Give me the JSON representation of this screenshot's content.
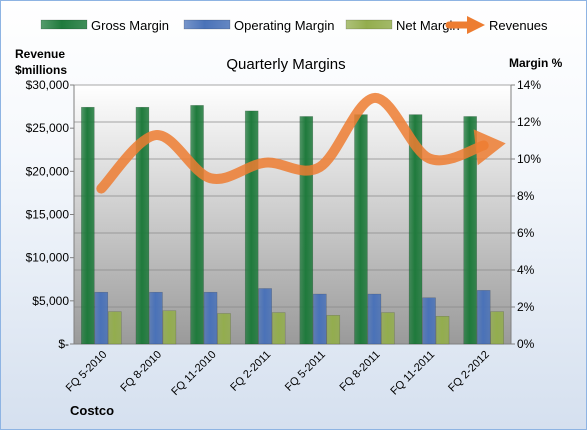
{
  "company": "Costco",
  "colors": {
    "gross": "#1f7a3c",
    "operating": "#4a72b8",
    "net": "#93ad4e",
    "revenues": "#ed7d31"
  },
  "chart_data": {
    "type": "bar",
    "title": "Quarterly Margins",
    "left_axis_label": [
      "Revenue",
      "$millions"
    ],
    "right_axis_label": "Margin %",
    "categories": [
      "FQ 5-2010",
      "FQ 8-2010",
      "FQ 11-2010",
      "FQ 2-2011",
      "FQ 5-2011",
      "FQ 8-2011",
      "FQ 11-2011",
      "FQ 2-2012"
    ],
    "left_axis": {
      "min": 0,
      "max": 30000,
      "step": 5000,
      "tick_labels": [
        "$-",
        "$5,000",
        "$10,000",
        "$15,000",
        "$20,000",
        "$25,000",
        "$30,000"
      ]
    },
    "right_axis": {
      "min": 0,
      "max": 14,
      "step": 2,
      "tick_labels": [
        "0%",
        "2%",
        "4%",
        "6%",
        "8%",
        "10%",
        "12%",
        "14%"
      ]
    },
    "series": [
      {
        "name": "Gross Margin",
        "axis": "right",
        "values": [
          12.8,
          12.8,
          12.9,
          12.6,
          12.3,
          12.4,
          12.4,
          12.3
        ]
      },
      {
        "name": "Operating Margin",
        "axis": "right",
        "values": [
          2.8,
          2.8,
          2.8,
          3.0,
          2.7,
          2.7,
          2.5,
          2.9
        ]
      },
      {
        "name": "Net Margin",
        "axis": "right",
        "values": [
          1.75,
          1.8,
          1.65,
          1.7,
          1.55,
          1.7,
          1.5,
          1.75
        ]
      },
      {
        "name": "Revenues",
        "axis": "left",
        "type": "line",
        "values": [
          18000,
          24200,
          19200,
          21000,
          20500,
          28500,
          21500,
          23000
        ]
      }
    ],
    "legend_position": "top",
    "grid": true
  }
}
